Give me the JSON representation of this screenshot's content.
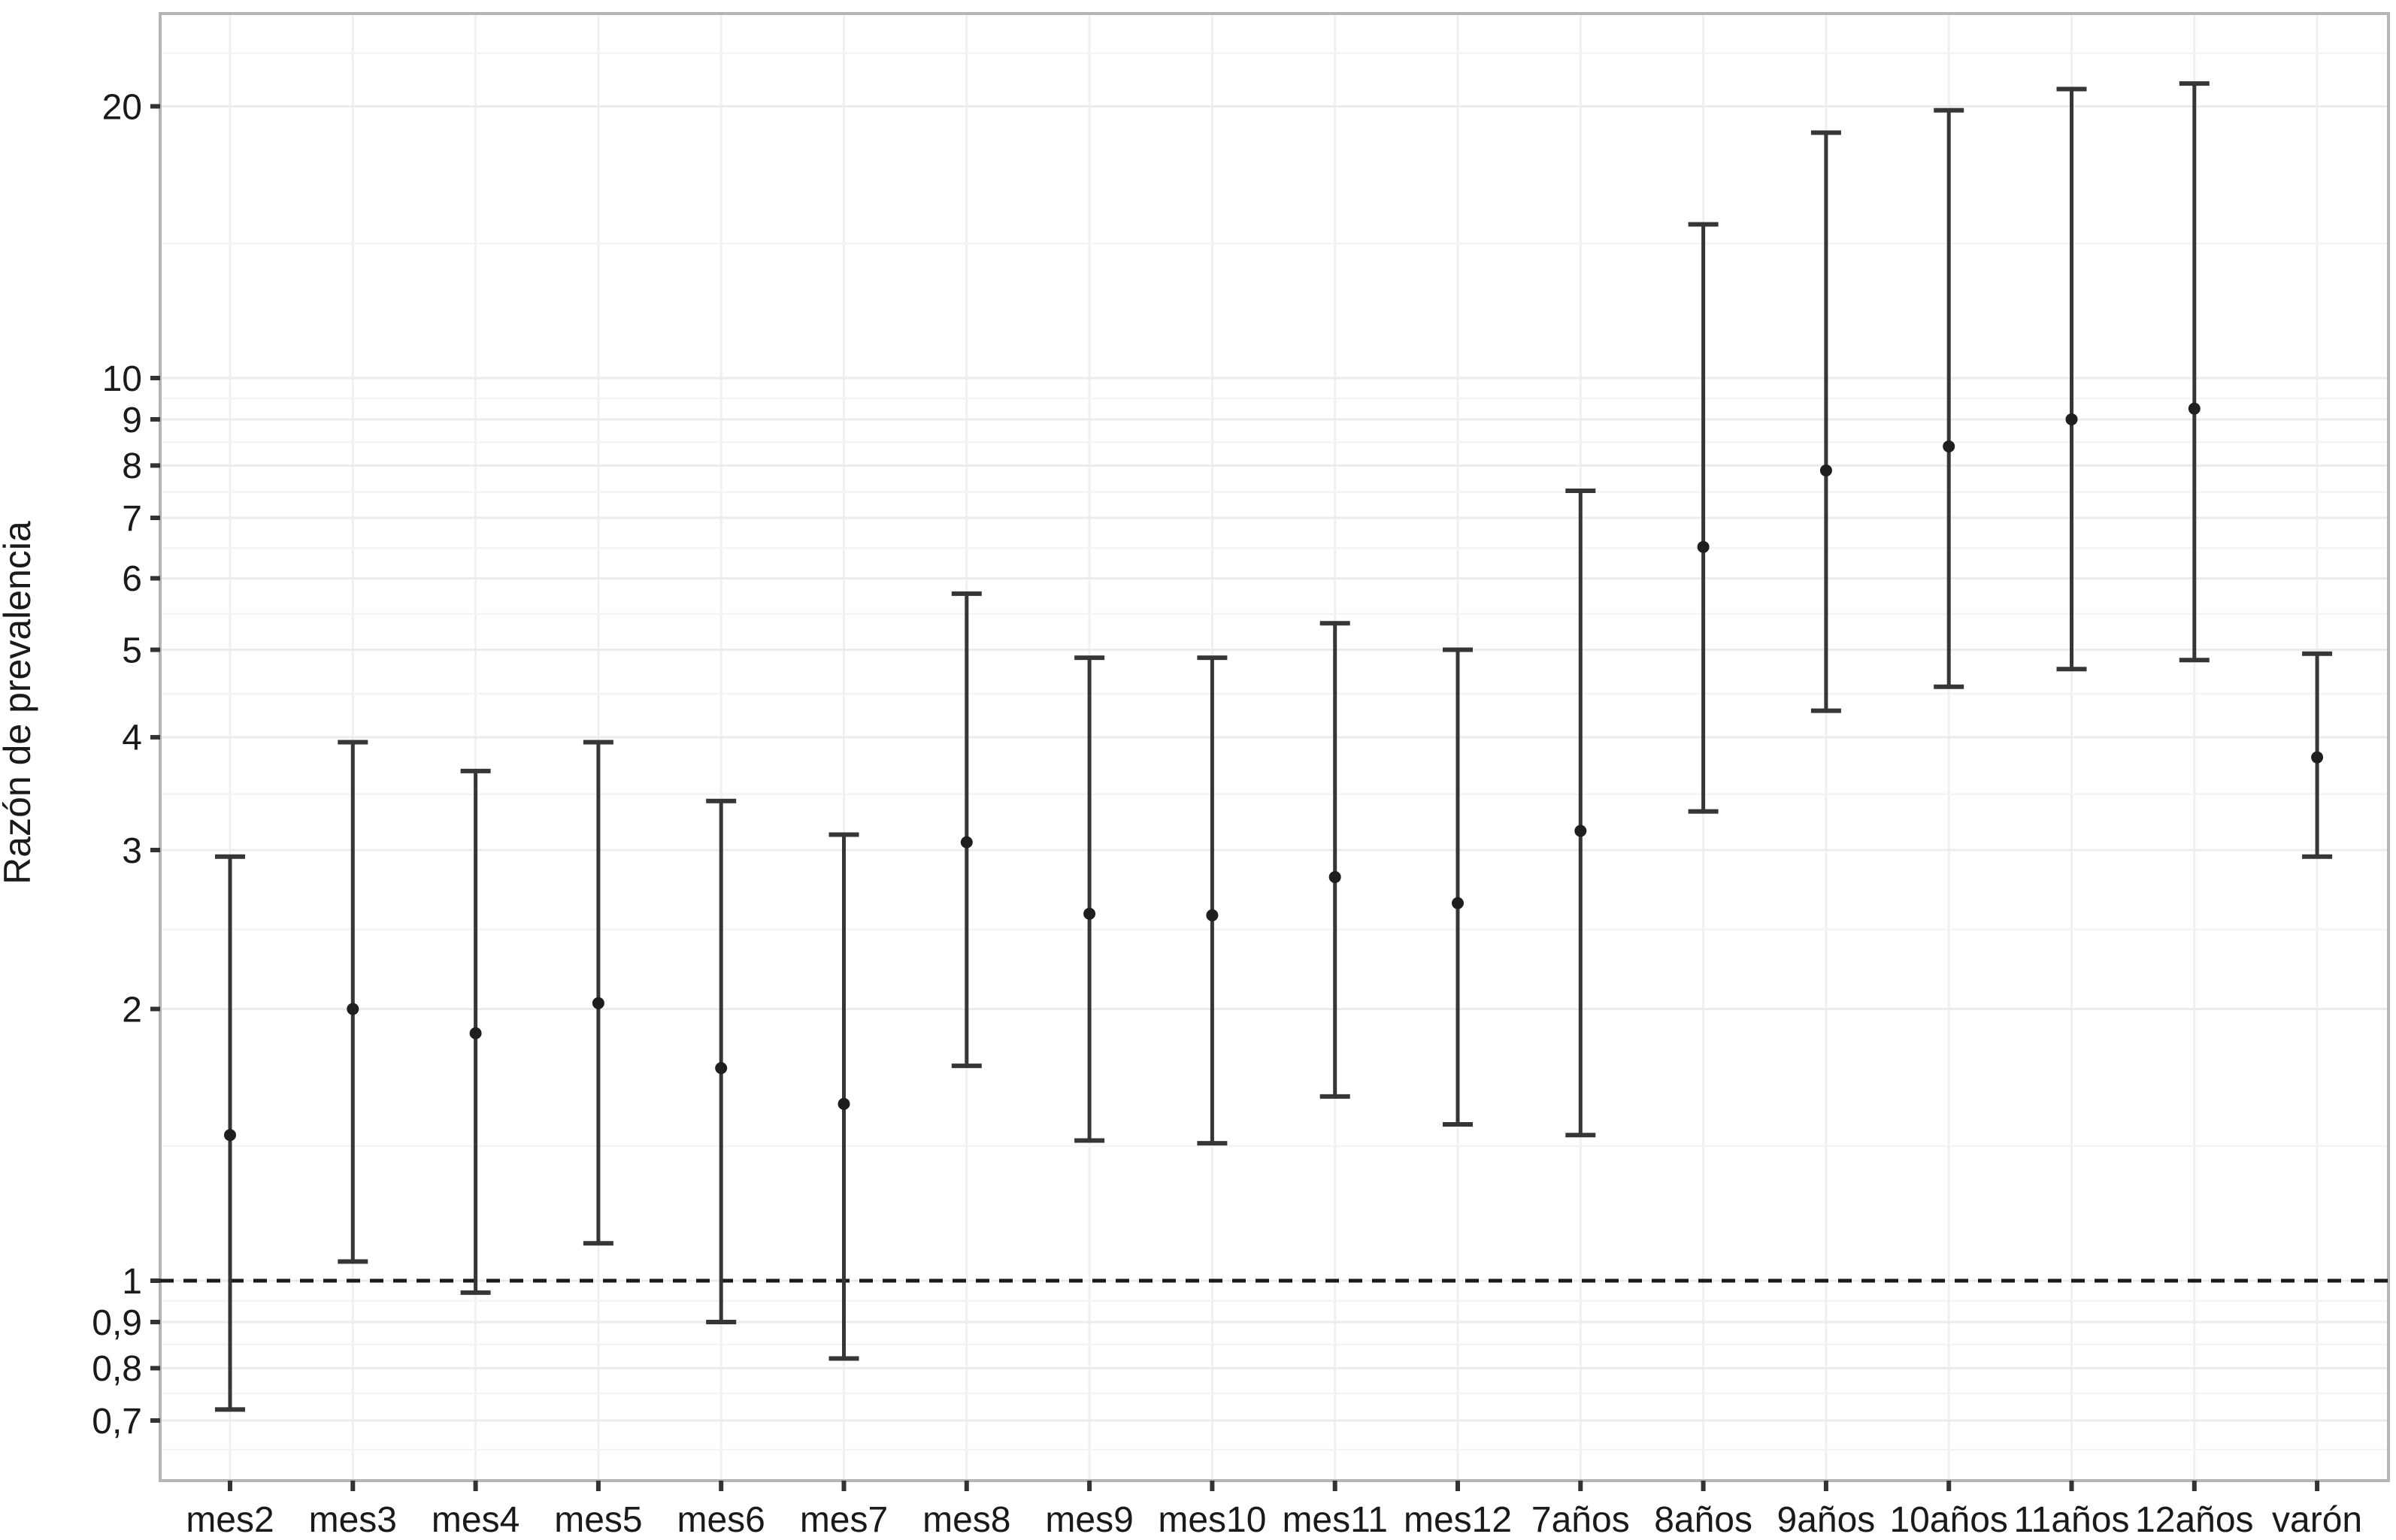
{
  "chart_data": {
    "type": "errorbar",
    "title": "",
    "xlabel": "",
    "ylabel": "Razón de prevalencia",
    "yscale": "log10",
    "ylim": [
      0.6,
      25.4
    ],
    "grid": true,
    "legend": false,
    "reference_line": {
      "value": 1,
      "style": "dashed"
    },
    "y_ticks": [
      {
        "value": 20,
        "label": "20"
      },
      {
        "value": 10,
        "label": "10"
      },
      {
        "value": 9,
        "label": "9"
      },
      {
        "value": 8,
        "label": "8"
      },
      {
        "value": 7,
        "label": "7"
      },
      {
        "value": 6,
        "label": "6"
      },
      {
        "value": 5,
        "label": "5"
      },
      {
        "value": 4,
        "label": "4"
      },
      {
        "value": 3,
        "label": "3"
      },
      {
        "value": 2,
        "label": "2"
      },
      {
        "value": 1,
        "label": "1"
      },
      {
        "value": 0.9,
        "label": "0,9"
      },
      {
        "value": 0.8,
        "label": "0,8"
      },
      {
        "value": 0.7,
        "label": "0,7"
      }
    ],
    "y_minor_gridlines": [
      0.65,
      0.75,
      0.85,
      0.95,
      1.41,
      2.45,
      3.46,
      4.47,
      5.48,
      6.48,
      7.48,
      8.49,
      9.49,
      14.1,
      22.9
    ],
    "categories": [
      "mes2",
      "mes3",
      "mes4",
      "mes5",
      "mes6",
      "mes7",
      "mes8",
      "mes9",
      "mes10",
      "mes11",
      "mes12",
      "7años",
      "8años",
      "9años",
      "10años",
      "11años",
      "12años",
      "varón"
    ],
    "points": [
      {
        "category": "mes2",
        "estimate": 1.45,
        "ci_low": 0.72,
        "ci_high": 2.95
      },
      {
        "category": "mes3",
        "estimate": 2.0,
        "ci_low": 1.05,
        "ci_high": 3.95
      },
      {
        "category": "mes4",
        "estimate": 1.88,
        "ci_low": 0.97,
        "ci_high": 3.67
      },
      {
        "category": "mes5",
        "estimate": 2.03,
        "ci_low": 1.1,
        "ci_high": 3.95
      },
      {
        "category": "mes6",
        "estimate": 1.72,
        "ci_low": 0.9,
        "ci_high": 3.4
      },
      {
        "category": "mes7",
        "estimate": 1.57,
        "ci_low": 0.82,
        "ci_high": 3.12
      },
      {
        "category": "mes8",
        "estimate": 3.06,
        "ci_low": 1.73,
        "ci_high": 5.77
      },
      {
        "category": "mes9",
        "estimate": 2.55,
        "ci_low": 1.43,
        "ci_high": 4.9
      },
      {
        "category": "mes10",
        "estimate": 2.54,
        "ci_low": 1.42,
        "ci_high": 4.9
      },
      {
        "category": "mes11",
        "estimate": 2.8,
        "ci_low": 1.6,
        "ci_high": 5.35
      },
      {
        "category": "mes12",
        "estimate": 2.62,
        "ci_low": 1.49,
        "ci_high": 5.0
      },
      {
        "category": "7años",
        "estimate": 3.15,
        "ci_low": 1.45,
        "ci_high": 7.5
      },
      {
        "category": "8años",
        "estimate": 6.5,
        "ci_low": 3.31,
        "ci_high": 14.8
      },
      {
        "category": "9años",
        "estimate": 7.9,
        "ci_low": 4.28,
        "ci_high": 18.7
      },
      {
        "category": "10años",
        "estimate": 8.4,
        "ci_low": 4.55,
        "ci_high": 19.8
      },
      {
        "category": "11años",
        "estimate": 9.0,
        "ci_low": 4.76,
        "ci_high": 20.9
      },
      {
        "category": "12años",
        "estimate": 9.25,
        "ci_low": 4.87,
        "ci_high": 21.2
      },
      {
        "category": "varón",
        "estimate": 3.8,
        "ci_low": 2.95,
        "ci_high": 4.95
      }
    ],
    "colors": {
      "background": "#ffffff",
      "errorbar": "#363636",
      "point": "#1f1f1f",
      "text": "#1a1a1a",
      "grid_major": "#ececec",
      "grid_minor": "#f4f4f4",
      "grid_vertical": "#f0f0f0",
      "panel_border": "#b5b5b5",
      "tick": "#333333",
      "reference_line": "#1a1a1a"
    }
  }
}
